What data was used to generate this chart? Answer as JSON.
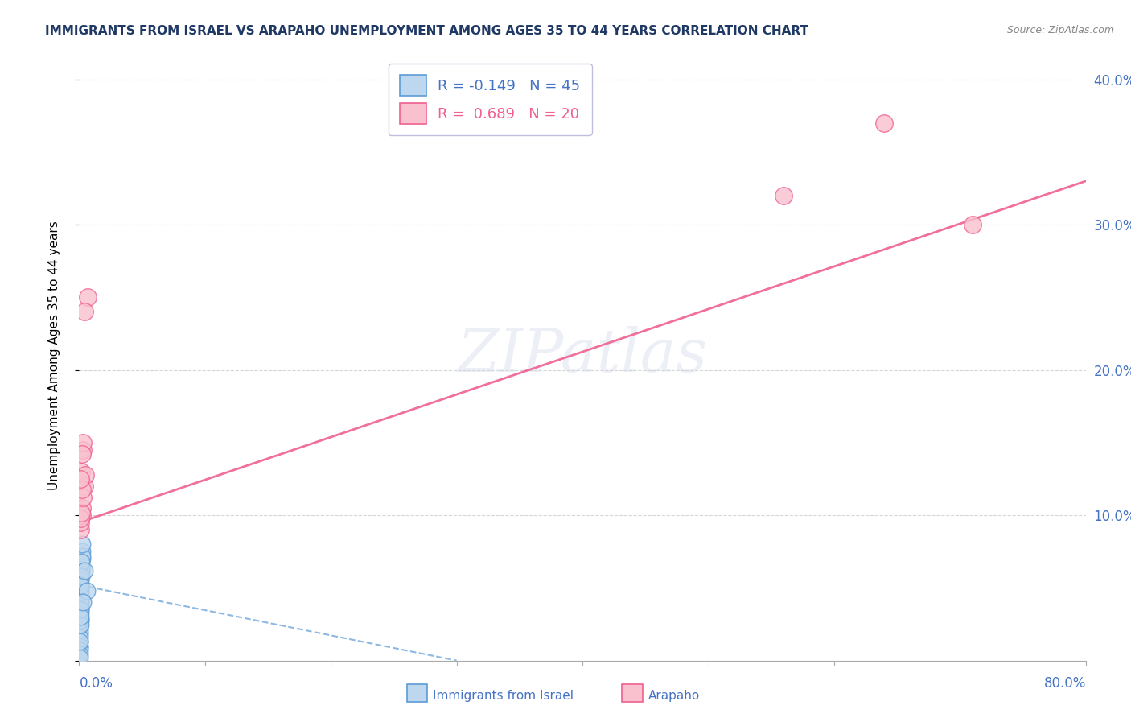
{
  "title": "IMMIGRANTS FROM ISRAEL VS ARAPAHO UNEMPLOYMENT AMONG AGES 35 TO 44 YEARS CORRELATION CHART",
  "source_text": "Source: ZipAtlas.com",
  "ylabel": "Unemployment Among Ages 35 to 44 years",
  "legend_label1": "Immigrants from Israel",
  "legend_label2": "Arapaho",
  "r_blue": -0.149,
  "n_blue": 45,
  "r_pink": 0.689,
  "n_pink": 20,
  "watermark": "ZIPatlas",
  "blue_dots_x": [
    0.0005,
    0.001,
    0.0008,
    0.0015,
    0.001,
    0.0006,
    0.002,
    0.001,
    0.0005,
    0.0012,
    0.0006,
    0.001,
    0.0004,
    0.001,
    0.0015,
    0.0005,
    0.0009,
    0.002,
    0.0004,
    0.001,
    0.0012,
    0.0006,
    0.001,
    0.0005,
    0.0015,
    0.002,
    0.001,
    0.0004,
    0.0025,
    0.001,
    0.0004,
    0.0012,
    0.0008,
    0.0003,
    0.0018,
    0.0014,
    0.001,
    0.0003,
    0.001,
    0.0012,
    0.0005,
    0.001,
    0.006,
    0.004,
    0.003
  ],
  "blue_dots_y": [
    0.04,
    0.052,
    0.028,
    0.065,
    0.048,
    0.035,
    0.07,
    0.038,
    0.022,
    0.058,
    0.03,
    0.043,
    0.018,
    0.05,
    0.062,
    0.013,
    0.036,
    0.075,
    0.009,
    0.042,
    0.06,
    0.02,
    0.046,
    0.016,
    0.063,
    0.072,
    0.033,
    0.01,
    0.08,
    0.04,
    0.007,
    0.055,
    0.028,
    0.004,
    0.068,
    0.058,
    0.025,
    0.002,
    0.035,
    0.052,
    0.013,
    0.03,
    0.048,
    0.062,
    0.04
  ],
  "pink_dots_x": [
    0.001,
    0.002,
    0.0015,
    0.004,
    0.003,
    0.001,
    0.003,
    0.002,
    0.56,
    0.64,
    0.0008,
    0.005,
    0.007,
    0.0015,
    0.003,
    0.002,
    0.71,
    0.002,
    0.001,
    0.004
  ],
  "pink_dots_y": [
    0.09,
    0.105,
    0.13,
    0.12,
    0.145,
    0.095,
    0.15,
    0.1,
    0.32,
    0.37,
    0.098,
    0.128,
    0.25,
    0.102,
    0.112,
    0.118,
    0.3,
    0.142,
    0.125,
    0.24
  ],
  "blue_line_x": [
    0.0,
    0.3
  ],
  "blue_line_y": [
    0.052,
    0.0
  ],
  "pink_line_x": [
    0.0,
    0.8
  ],
  "pink_line_y": [
    0.095,
    0.33
  ],
  "xlim": [
    0.0,
    0.8
  ],
  "ylim": [
    0.0,
    0.42
  ],
  "yticks": [
    0.0,
    0.1,
    0.2,
    0.3,
    0.4
  ],
  "ytick_labels_right": [
    "",
    "10.0%",
    "20.0%",
    "30.0%",
    "40.0%"
  ],
  "xtick_positions": [
    0.0,
    0.1,
    0.2,
    0.3,
    0.4,
    0.5,
    0.6,
    0.7,
    0.8
  ],
  "blue_color": "#5b9bd5",
  "blue_face": "#bdd7ee",
  "pink_color": "#f06090",
  "pink_face": "#f9c0ce",
  "grid_color": "#cccccc",
  "title_color": "#1f3864",
  "axis_label_color": "#4472c4",
  "source_color": "#888888"
}
